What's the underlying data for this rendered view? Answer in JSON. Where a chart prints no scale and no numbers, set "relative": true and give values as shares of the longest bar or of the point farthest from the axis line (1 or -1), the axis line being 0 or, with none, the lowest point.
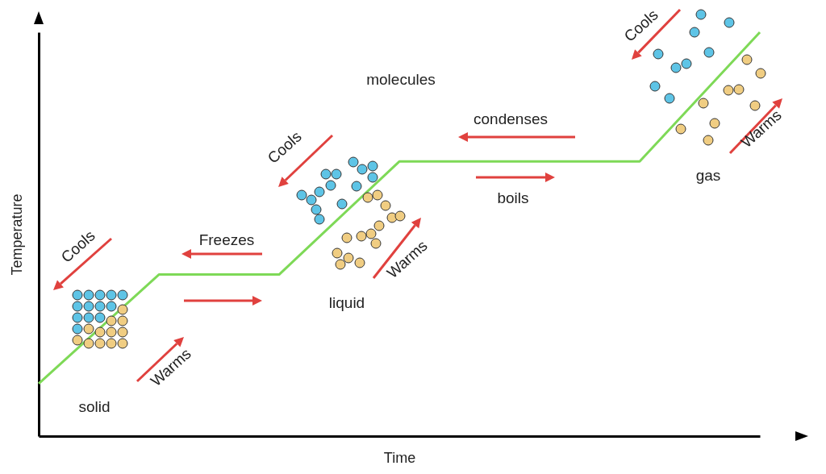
{
  "chart_data": {
    "type": "line",
    "relative": true,
    "grid": false,
    "xlabel": "Time",
    "ylabel": "Temperature",
    "categories": [
      null,
      null,
      null,
      null,
      null,
      null,
      null
    ],
    "series": [
      {
        "color": "#7ed957",
        "values": [
          0.13,
          0.4,
          0.4,
          0.68,
          0.68,
          0.68,
          1
        ]
      }
    ],
    "annotations": [
      "Cools",
      "molecules",
      "condenses",
      "Cools",
      "Warms",
      "gas",
      "boils",
      "Freezes",
      "Cools",
      "Warms",
      "liquid",
      "Warms",
      "solid"
    ]
  }
}
